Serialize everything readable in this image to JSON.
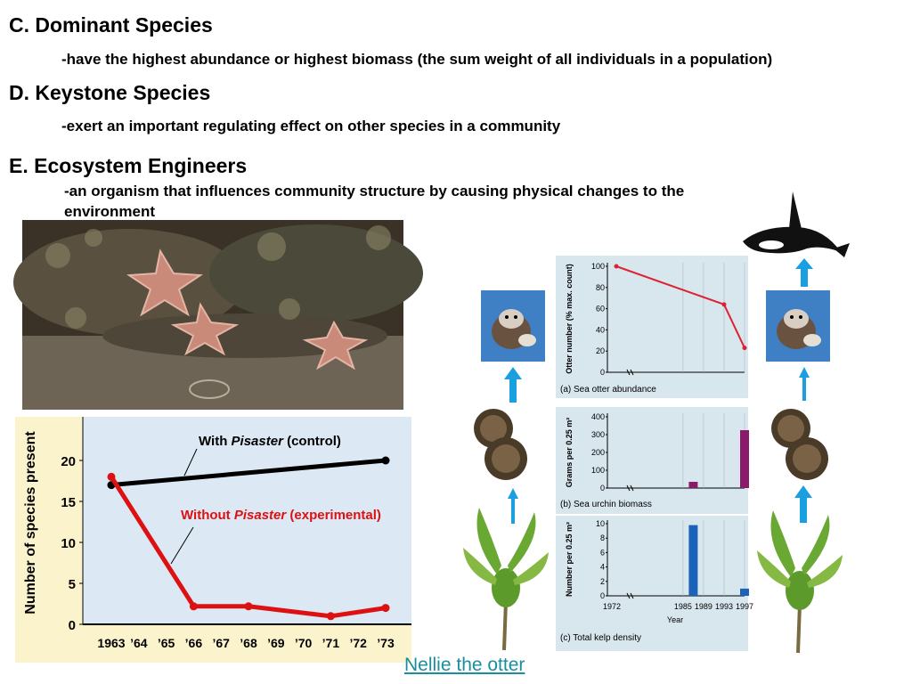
{
  "slide": {
    "c_heading": "C.  Dominant Species",
    "c_text": "-have the highest abundance or highest biomass (the sum weight of all individuals in a population)",
    "d_heading": "D.  Keystone Species",
    "d_text": "-exert an important regulating effect on other species in a community",
    "e_heading": "E.  Ecosystem Engineers",
    "e_text": "-an organism that influences community structure by causing physical changes to the environment",
    "link_text": "Nellie the otter"
  },
  "colors": {
    "accent_red": "#dd1111",
    "link": "#1a8e9e",
    "arrow": "#1aa0e0",
    "bar_purple": "#8a1a6a",
    "bar_blue": "#1a63b8"
  },
  "icons": [
    "orca-icon",
    "sea-otter-icon",
    "sea-urchin-icon",
    "kelp-icon",
    "up-arrow-icon",
    "sea-star-photo"
  ],
  "chart_data": [
    {
      "type": "line",
      "ylabel": "Number of species present",
      "x": [
        "1963",
        "’64",
        "’65",
        "’66",
        "’67",
        "’68",
        "’69",
        "’70",
        "’71",
        "’72",
        "’73"
      ],
      "yticks": [
        "0",
        "5",
        "10",
        "15",
        "20"
      ],
      "ylim": [
        0,
        25
      ],
      "series": [
        {
          "name": "With Pisaster (control)",
          "label_prefix": "With ",
          "label_italic": "Pisaster",
          "label_suffix": " (control)",
          "color": "#000000",
          "points": [
            {
              "x": "1963",
              "y": 17
            },
            {
              "x": "’73",
              "y": 20
            }
          ]
        },
        {
          "name": "Without Pisaster (experimental)",
          "label_prefix": "Without ",
          "label_italic": "Pisaster",
          "label_suffix": " (experimental)",
          "color": "#dd1111",
          "points": [
            {
              "x": "1963",
              "y": 18
            },
            {
              "x": "’66",
              "y": 2.2
            },
            {
              "x": "’68",
              "y": 2.2
            },
            {
              "x": "’71",
              "y": 1
            },
            {
              "x": "’73",
              "y": 2
            }
          ]
        }
      ]
    },
    {
      "type": "line",
      "caption": "(a) Sea otter abundance",
      "ylabel": "Otter number (% max. count)",
      "yticks": [
        "0",
        "20",
        "40",
        "60",
        "80",
        "100"
      ],
      "ylim": [
        0,
        100
      ],
      "xlim": [
        1972,
        1997
      ],
      "series": [
        {
          "x": [
            1972,
            1993,
            1997
          ],
          "y": [
            100,
            64,
            23
          ],
          "color": "#dd2233"
        }
      ]
    },
    {
      "type": "bar",
      "caption": "(b) Sea urchin biomass",
      "ylabel": "Grams per 0.25 m²",
      "yticks": [
        "0",
        "100",
        "200",
        "300",
        "400"
      ],
      "ylim": [
        0,
        400
      ],
      "xlim": [
        1972,
        1997
      ],
      "bars": [
        {
          "x": 1987,
          "y": 35
        },
        {
          "x": 1997,
          "y": 325
        }
      ]
    },
    {
      "type": "bar",
      "caption": "(c) Total kelp density",
      "ylabel": "Number per 0.25 m²",
      "xlabel": "Year",
      "xticks": [
        "1972",
        "1985",
        "1989",
        "1993",
        "1997"
      ],
      "yticks": [
        "0",
        "2",
        "4",
        "6",
        "8",
        "10"
      ],
      "ylim": [
        0,
        10
      ],
      "xlim": [
        1972,
        1997
      ],
      "bars": [
        {
          "x": 1987,
          "y": 9.8
        },
        {
          "x": 1997,
          "y": 1
        }
      ]
    }
  ]
}
